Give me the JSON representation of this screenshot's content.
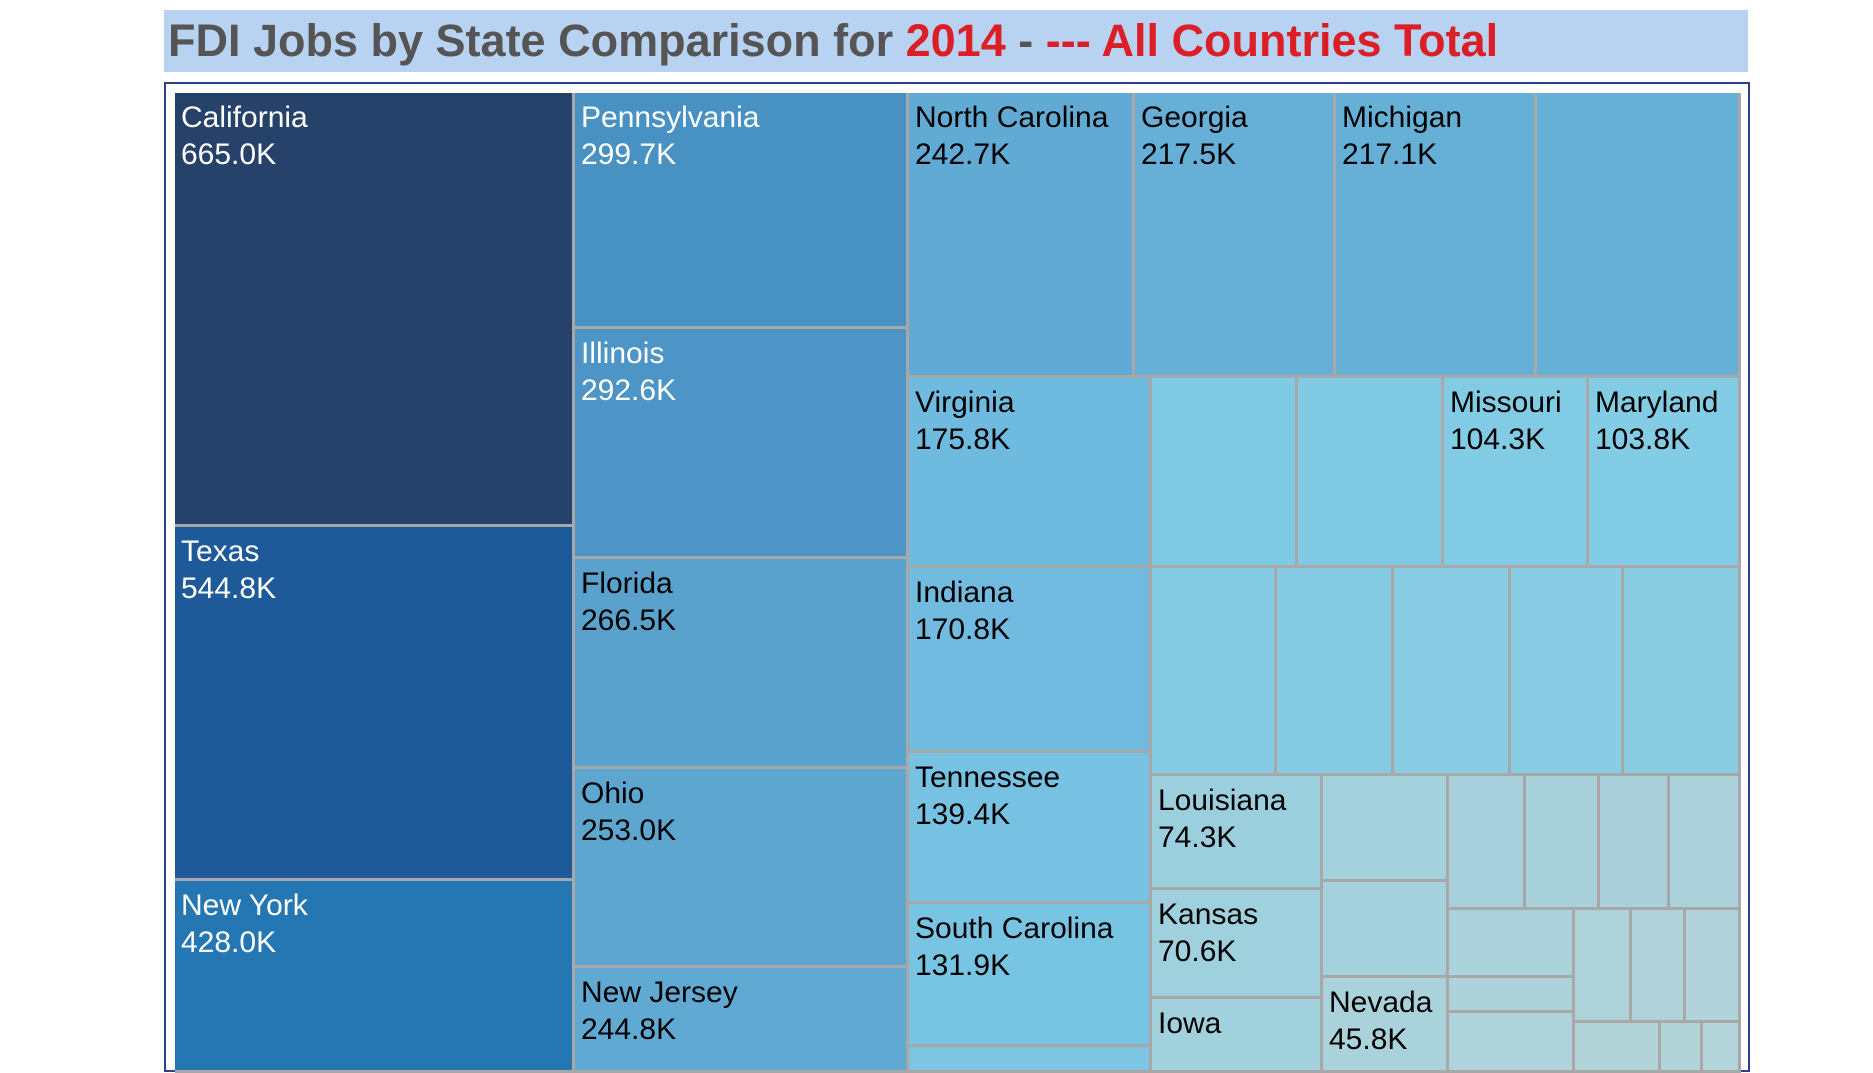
{
  "title": {
    "prefix": "FDI Jobs by State Comparison for ",
    "year": "2014",
    "separator": " - ",
    "country": "--- All Countries Total"
  },
  "colors": {
    "title_bg": "#b8d3f2",
    "title_text": "#555555",
    "title_highlight": "#dc1e26",
    "frame_border": "#2d3f8f",
    "cell_border": "#a8a8a8"
  },
  "chart_data": {
    "type": "treemap",
    "unit": "K",
    "cells": [
      {
        "name": "California",
        "value": "665.0K",
        "color": "#26426b",
        "text_color": "#ffffff"
      },
      {
        "name": "Texas",
        "value": "544.8K",
        "color": "#1e5a9a",
        "text_color": "#ffffff"
      },
      {
        "name": "New York",
        "value": "428.0K",
        "color": "#2477b3",
        "text_color": "#ffffff"
      },
      {
        "name": "Pennsylvania",
        "value": "299.7K",
        "color": "#4891c3",
        "text_color": "#ffffff"
      },
      {
        "name": "Illinois",
        "value": "292.6K",
        "color": "#4d95c6",
        "text_color": "#ffffff"
      },
      {
        "name": "Florida",
        "value": "266.5K",
        "color": "#58a2cd",
        "text_color": "#000000"
      },
      {
        "name": "Ohio",
        "value": "253.0K",
        "color": "#5ca6d0",
        "text_color": "#000000"
      },
      {
        "name": "New Jersey",
        "value": "244.8K",
        "color": "#60a9d3",
        "text_color": "#000000"
      },
      {
        "name": "North Carolina",
        "value": "242.7K",
        "color": "#61aad4",
        "text_color": "#000000"
      },
      {
        "name": "Georgia",
        "value": "217.5K",
        "color": "#66b0d8",
        "text_color": "#000000"
      },
      {
        "name": "Michigan",
        "value": "217.1K",
        "color": "#66b0d8",
        "text_color": "#000000"
      },
      {
        "name": "",
        "value": "",
        "color": "#66b0d8",
        "text_color": "#000000"
      },
      {
        "name": "Virginia",
        "value": "175.8K",
        "color": "#6fbadf",
        "text_color": "#000000"
      },
      {
        "name": "",
        "value": "",
        "color": "#7fcae4",
        "text_color": "#000000"
      },
      {
        "name": "",
        "value": "",
        "color": "#80cae4",
        "text_color": "#000000"
      },
      {
        "name": "Missouri",
        "value": "104.3K",
        "color": "#82cbe5",
        "text_color": "#000000"
      },
      {
        "name": "Maryland",
        "value": "103.8K",
        "color": "#83cce5",
        "text_color": "#000000"
      },
      {
        "name": "Indiana",
        "value": "170.8K",
        "color": "#71bbe0",
        "text_color": "#000000"
      },
      {
        "name": "",
        "value": "",
        "color": "#84cbe3",
        "text_color": "#000000"
      },
      {
        "name": "",
        "value": "",
        "color": "#85cbe3",
        "text_color": "#000000"
      },
      {
        "name": "",
        "value": "",
        "color": "#87cce3",
        "text_color": "#000000"
      },
      {
        "name": "",
        "value": "",
        "color": "#88cde3",
        "text_color": "#000000"
      },
      {
        "name": "",
        "value": "",
        "color": "#8acde2",
        "text_color": "#000000"
      },
      {
        "name": "Tennessee",
        "value": "139.4K",
        "color": "#77c2e2",
        "text_color": "#000000"
      },
      {
        "name": "South Carolina",
        "value": "131.9K",
        "color": "#78c4e3",
        "text_color": "#000000"
      },
      {
        "name": "",
        "value": "",
        "color": "#7cc6e3",
        "text_color": "#000000"
      },
      {
        "name": "Louisiana",
        "value": "74.3K",
        "color": "#9bcfde",
        "text_color": "#000000"
      },
      {
        "name": "Kansas",
        "value": "70.6K",
        "color": "#9ed0dd",
        "text_color": "#000000"
      },
      {
        "name": "Iowa",
        "value": "",
        "color": "#a1d1dd",
        "text_color": "#000000"
      },
      {
        "name": "",
        "value": "",
        "color": "#a3d1dc",
        "text_color": "#000000"
      },
      {
        "name": "",
        "value": "",
        "color": "#a5d1dc",
        "text_color": "#000000"
      },
      {
        "name": "Nevada",
        "value": "45.8K",
        "color": "#aad2da",
        "text_color": "#000000"
      },
      {
        "name": "",
        "value": "",
        "color": "#a7d0dc",
        "text_color": "#000000"
      },
      {
        "name": "",
        "value": "",
        "color": "#a9d1dc",
        "text_color": "#000000"
      },
      {
        "name": "",
        "value": "",
        "color": "#aad1db",
        "text_color": "#000000"
      },
      {
        "name": "",
        "value": "",
        "color": "#abd1db",
        "text_color": "#000000"
      },
      {
        "name": "",
        "value": "",
        "color": "#acd2db",
        "text_color": "#000000"
      },
      {
        "name": "",
        "value": "",
        "color": "#add2da",
        "text_color": "#000000"
      },
      {
        "name": "",
        "value": "",
        "color": "#aed3da",
        "text_color": "#000000"
      },
      {
        "name": "",
        "value": "",
        "color": "#afd3da",
        "text_color": "#000000"
      },
      {
        "name": "",
        "value": "",
        "color": "#b0d3da",
        "text_color": "#000000"
      },
      {
        "name": "",
        "value": "",
        "color": "#b1d4da",
        "text_color": "#000000"
      },
      {
        "name": "",
        "value": "",
        "color": "#b2d4d9",
        "text_color": "#000000"
      },
      {
        "name": "",
        "value": "",
        "color": "#b2d4d9",
        "text_color": "#000000"
      },
      {
        "name": "",
        "value": "",
        "color": "#b3d5d9",
        "text_color": "#000000"
      }
    ]
  }
}
